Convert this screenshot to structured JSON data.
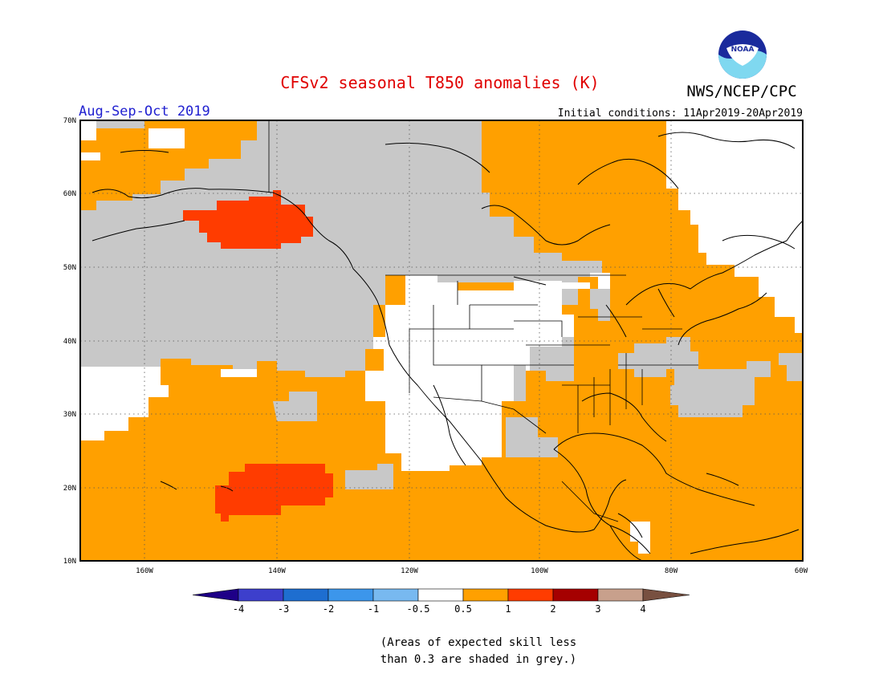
{
  "header": {
    "title": "CFSv2 seasonal T850 anomalies (K)",
    "agency": "NWS/NCEP/CPC",
    "logo_text": "NOAA",
    "season": "Aug-Sep-Oct 2019",
    "initial_conditions": "Initial conditions: 11Apr2019-20Apr2019"
  },
  "axes": {
    "lat_labels": [
      "70N",
      "60N",
      "50N",
      "40N",
      "30N",
      "20N",
      "10N"
    ],
    "lon_labels": [
      "160W",
      "140W",
      "120W",
      "100W",
      "80W",
      "60W"
    ]
  },
  "legend": {
    "tick_labels": [
      "-4",
      "-3",
      "-2",
      "-1",
      "-0.5",
      "0.5",
      "1",
      "2",
      "3",
      "4"
    ],
    "colors": [
      "#1e0087",
      "#3d3fcc",
      "#1e6ed0",
      "#3c96eb",
      "#78b9f0",
      "#ffffff",
      "#ffa000",
      "#ff3c00",
      "#a50000",
      "#c8a08c",
      "#785040"
    ]
  },
  "footnote": {
    "line1": "(Areas of expected skill less",
    "line2": "than 0.3 are shaded in grey.)"
  },
  "colors": {
    "title": "#e00000",
    "season": "#2020d0",
    "grey": "#c8c8c8",
    "orange": "#ffa000",
    "red": "#ff3c00",
    "white": "#ffffff",
    "coast": "#000000"
  }
}
